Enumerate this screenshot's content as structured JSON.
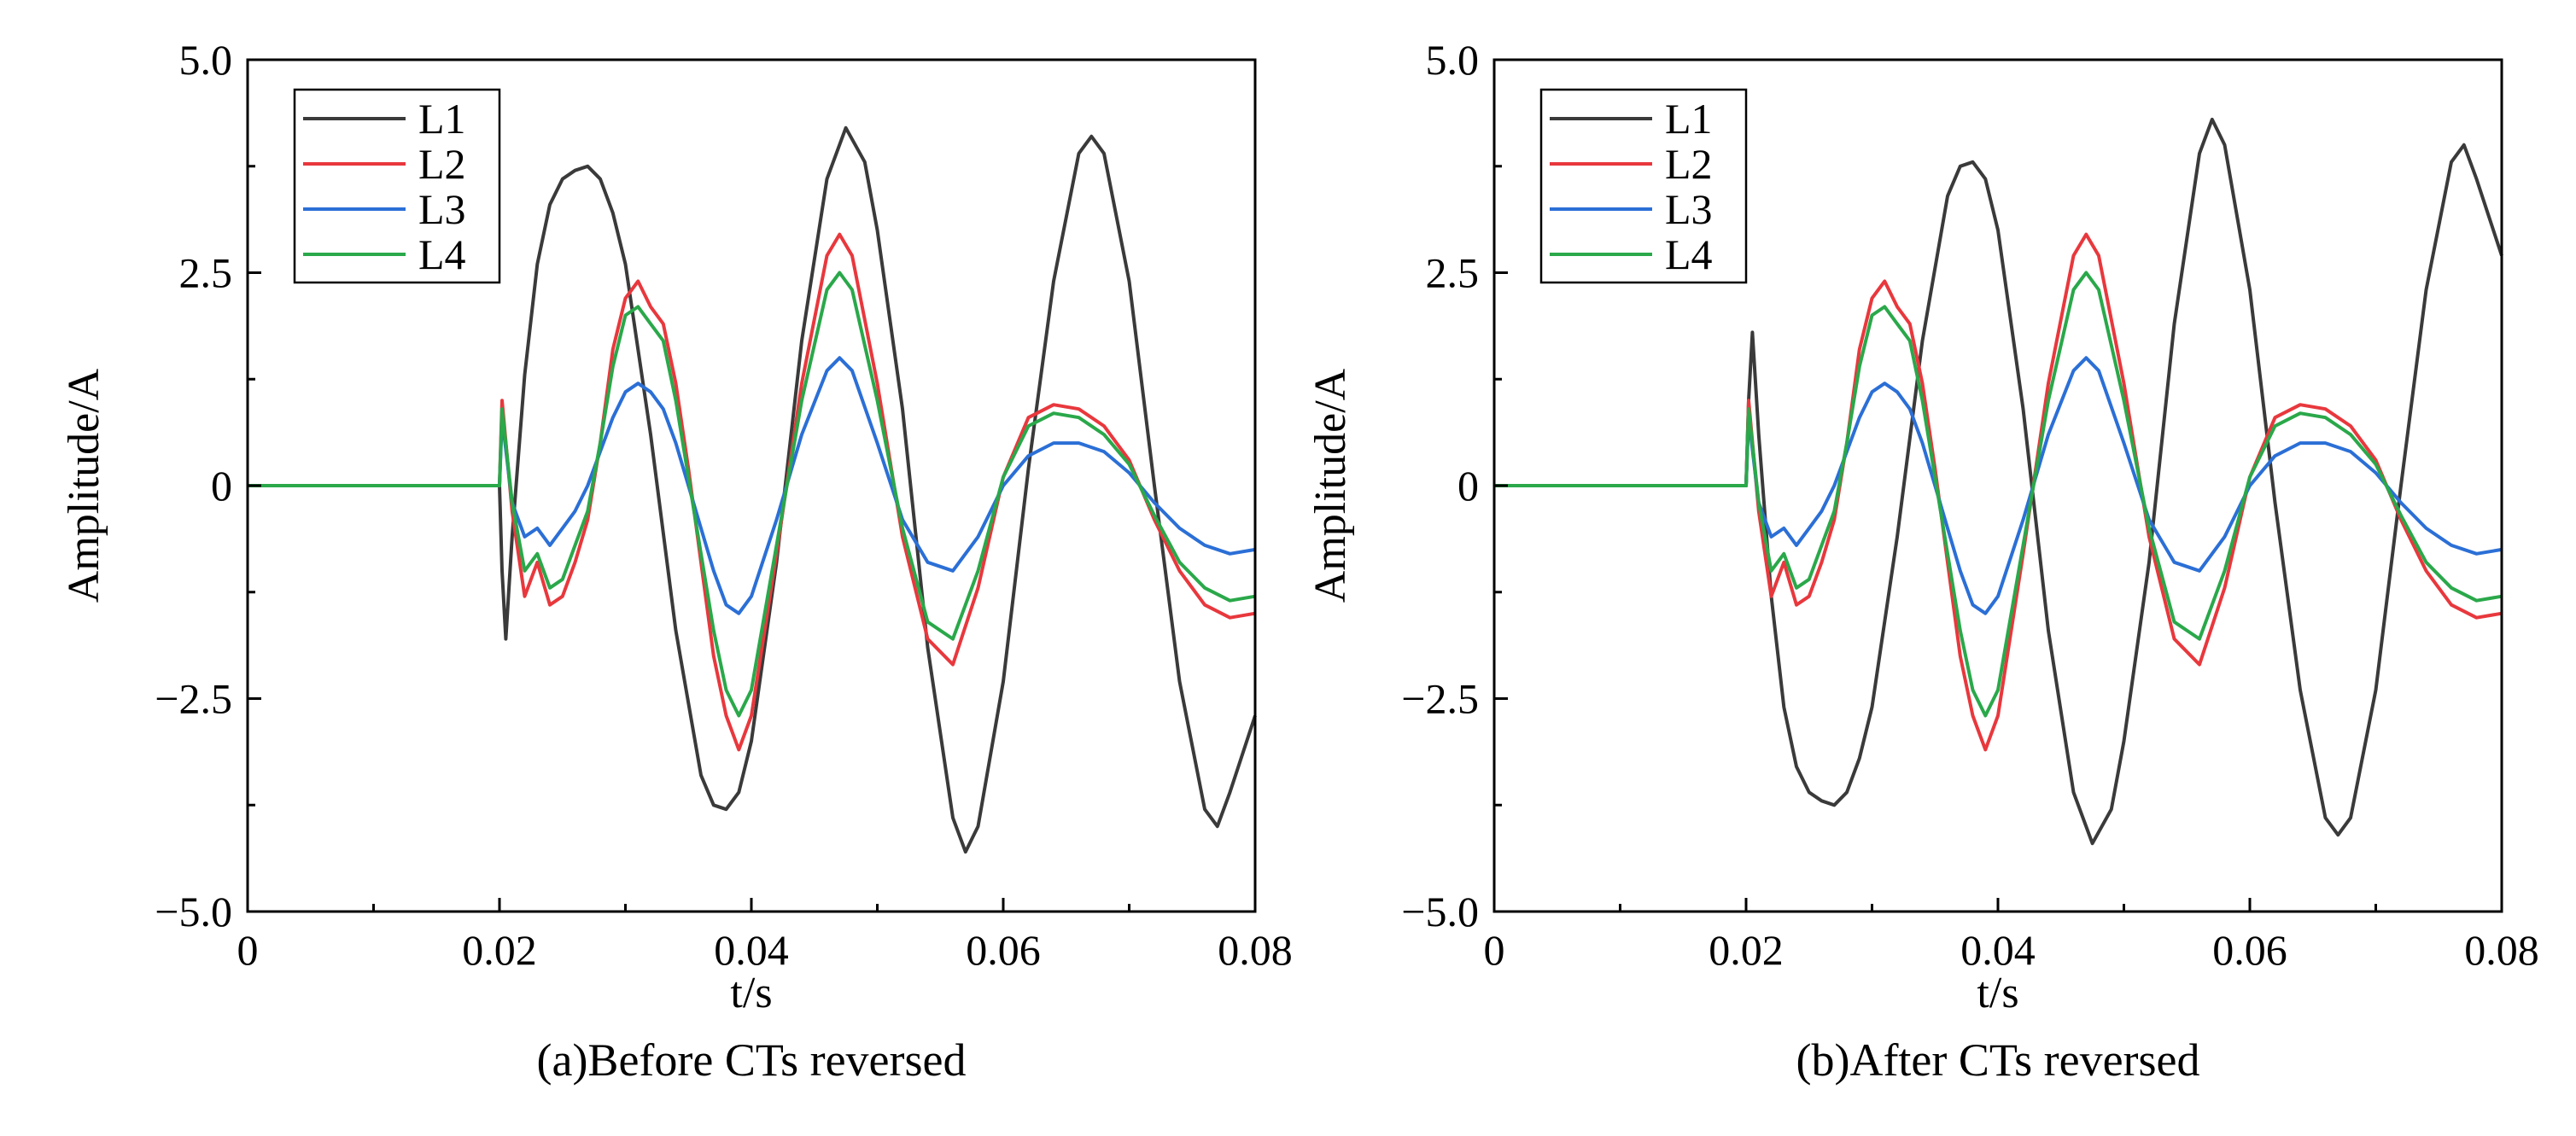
{
  "chart_data": [
    {
      "type": "line",
      "caption": "(a)Before CTs reversed",
      "xlabel": "t/s",
      "ylabel": "Amplitude/A",
      "xlim": [
        0,
        0.08
      ],
      "ylim": [
        -5.0,
        5.0
      ],
      "xticks": [
        0,
        0.02,
        0.04,
        0.06,
        0.08
      ],
      "xtick_labels": [
        "0",
        "0.02",
        "0.04",
        "0.06",
        "0.08"
      ],
      "yticks": [
        5.0,
        2.5,
        0,
        -2.5,
        -5.0
      ],
      "ytick_labels": [
        "5.0",
        "2.5",
        "0",
        "−2.5",
        "−5.0"
      ],
      "grid": false,
      "legend_position": "top-left",
      "series": [
        {
          "name": "L1",
          "color": "#3a3a3a",
          "x": [
            0,
            0.02,
            0.0202,
            0.0205,
            0.021,
            0.022,
            0.023,
            0.024,
            0.025,
            0.026,
            0.027,
            0.028,
            0.029,
            0.03,
            0.032,
            0.034,
            0.036,
            0.037,
            0.038,
            0.039,
            0.04,
            0.042,
            0.044,
            0.046,
            0.0475,
            0.049,
            0.05,
            0.052,
            0.054,
            0.056,
            0.057,
            0.058,
            0.06,
            0.062,
            0.064,
            0.066,
            0.067,
            0.068,
            0.07,
            0.072,
            0.074,
            0.076,
            0.077,
            0.078,
            0.08
          ],
          "values": [
            0,
            0,
            -1.0,
            -1.8,
            -0.6,
            1.3,
            2.6,
            3.3,
            3.6,
            3.7,
            3.75,
            3.6,
            3.2,
            2.6,
            0.6,
            -1.7,
            -3.4,
            -3.75,
            -3.8,
            -3.6,
            -3.0,
            -0.9,
            1.7,
            3.6,
            4.2,
            3.8,
            3.0,
            0.9,
            -1.9,
            -3.9,
            -4.3,
            -4.0,
            -2.3,
            0.2,
            2.4,
            3.9,
            4.1,
            3.9,
            2.4,
            0.0,
            -2.3,
            -3.8,
            -4.0,
            -3.6,
            -2.7
          ]
        },
        {
          "name": "L2",
          "color": "#e8383d",
          "x": [
            0,
            0.02,
            0.0202,
            0.021,
            0.022,
            0.023,
            0.024,
            0.025,
            0.026,
            0.027,
            0.028,
            0.029,
            0.03,
            0.031,
            0.032,
            0.033,
            0.034,
            0.035,
            0.036,
            0.037,
            0.038,
            0.039,
            0.04,
            0.042,
            0.044,
            0.046,
            0.047,
            0.048,
            0.05,
            0.052,
            0.054,
            0.056,
            0.058,
            0.06,
            0.062,
            0.064,
            0.066,
            0.068,
            0.07,
            0.072,
            0.074,
            0.076,
            0.078,
            0.08
          ],
          "values": [
            0,
            0,
            1.0,
            -0.3,
            -1.3,
            -0.9,
            -1.4,
            -1.3,
            -0.9,
            -0.4,
            0.5,
            1.6,
            2.2,
            2.4,
            2.1,
            1.9,
            1.2,
            0.2,
            -0.9,
            -2.0,
            -2.7,
            -3.1,
            -2.7,
            -0.8,
            1.2,
            2.7,
            2.95,
            2.7,
            1.2,
            -0.6,
            -1.8,
            -2.1,
            -1.2,
            0.1,
            0.8,
            0.95,
            0.9,
            0.7,
            0.3,
            -0.4,
            -1.0,
            -1.4,
            -1.55,
            -1.5
          ]
        },
        {
          "name": "L3",
          "color": "#2b6fd6",
          "x": [
            0,
            0.02,
            0.0202,
            0.021,
            0.022,
            0.023,
            0.024,
            0.025,
            0.026,
            0.027,
            0.028,
            0.029,
            0.03,
            0.031,
            0.032,
            0.033,
            0.034,
            0.035,
            0.036,
            0.037,
            0.038,
            0.039,
            0.04,
            0.042,
            0.044,
            0.046,
            0.047,
            0.048,
            0.05,
            0.052,
            0.054,
            0.056,
            0.058,
            0.06,
            0.062,
            0.064,
            0.066,
            0.068,
            0.07,
            0.072,
            0.074,
            0.076,
            0.078,
            0.08
          ],
          "values": [
            0,
            0,
            0.8,
            -0.2,
            -0.6,
            -0.5,
            -0.7,
            -0.5,
            -0.3,
            0.0,
            0.4,
            0.8,
            1.1,
            1.2,
            1.1,
            0.9,
            0.5,
            0.0,
            -0.5,
            -1.0,
            -1.4,
            -1.5,
            -1.3,
            -0.4,
            0.6,
            1.35,
            1.5,
            1.35,
            0.5,
            -0.4,
            -0.9,
            -1.0,
            -0.6,
            0.0,
            0.35,
            0.5,
            0.5,
            0.4,
            0.15,
            -0.2,
            -0.5,
            -0.7,
            -0.8,
            -0.75
          ]
        },
        {
          "name": "L4",
          "color": "#2aa84a",
          "x": [
            0,
            0.02,
            0.0202,
            0.021,
            0.022,
            0.023,
            0.024,
            0.025,
            0.026,
            0.027,
            0.028,
            0.029,
            0.03,
            0.031,
            0.032,
            0.033,
            0.034,
            0.035,
            0.036,
            0.037,
            0.038,
            0.039,
            0.04,
            0.042,
            0.044,
            0.046,
            0.047,
            0.048,
            0.05,
            0.052,
            0.054,
            0.056,
            0.058,
            0.06,
            0.062,
            0.064,
            0.066,
            0.068,
            0.07,
            0.072,
            0.074,
            0.076,
            0.078,
            0.08
          ],
          "values": [
            0,
            0,
            0.9,
            -0.2,
            -1.0,
            -0.8,
            -1.2,
            -1.1,
            -0.7,
            -0.3,
            0.5,
            1.4,
            2.0,
            2.1,
            1.9,
            1.7,
            1.0,
            0.1,
            -0.8,
            -1.7,
            -2.4,
            -2.7,
            -2.4,
            -0.7,
            1.0,
            2.3,
            2.5,
            2.3,
            1.0,
            -0.5,
            -1.6,
            -1.8,
            -1.0,
            0.1,
            0.7,
            0.85,
            0.8,
            0.6,
            0.25,
            -0.35,
            -0.9,
            -1.2,
            -1.35,
            -1.3
          ]
        }
      ]
    },
    {
      "type": "line",
      "caption": "(b)After CTs reversed",
      "xlabel": "t/s",
      "ylabel": "Amplitude/A",
      "xlim": [
        0,
        0.08
      ],
      "ylim": [
        -5.0,
        5.0
      ],
      "xticks": [
        0,
        0.02,
        0.04,
        0.06,
        0.08
      ],
      "xtick_labels": [
        "0",
        "0.02",
        "0.04",
        "0.06",
        "0.08"
      ],
      "yticks": [
        5.0,
        2.5,
        0,
        -2.5,
        -5.0
      ],
      "ytick_labels": [
        "5.0",
        "2.5",
        "0",
        "−2.5",
        "−5.0"
      ],
      "grid": false,
      "legend_position": "top-left",
      "series": [
        {
          "name": "L1",
          "color": "#3a3a3a",
          "x": [
            0,
            0.02,
            0.0202,
            0.0205,
            0.021,
            0.022,
            0.023,
            0.024,
            0.025,
            0.026,
            0.027,
            0.028,
            0.029,
            0.03,
            0.032,
            0.034,
            0.036,
            0.037,
            0.038,
            0.039,
            0.04,
            0.042,
            0.044,
            0.046,
            0.0475,
            0.049,
            0.05,
            0.052,
            0.054,
            0.056,
            0.057,
            0.058,
            0.06,
            0.062,
            0.064,
            0.066,
            0.067,
            0.068,
            0.07,
            0.072,
            0.074,
            0.076,
            0.077,
            0.078,
            0.08
          ],
          "values": [
            0,
            0,
            1.0,
            1.8,
            0.6,
            -1.3,
            -2.6,
            -3.3,
            -3.6,
            -3.7,
            -3.75,
            -3.6,
            -3.2,
            -2.6,
            -0.6,
            1.7,
            3.4,
            3.75,
            3.8,
            3.6,
            3.0,
            0.9,
            -1.7,
            -3.6,
            -4.2,
            -3.8,
            -3.0,
            -0.9,
            1.9,
            3.9,
            4.3,
            4.0,
            2.3,
            -0.2,
            -2.4,
            -3.9,
            -4.1,
            -3.9,
            -2.4,
            0.0,
            2.3,
            3.8,
            4.0,
            3.6,
            2.7
          ]
        },
        {
          "name": "L2",
          "color": "#e8383d",
          "x": [
            0,
            0.02,
            0.0202,
            0.021,
            0.022,
            0.023,
            0.024,
            0.025,
            0.026,
            0.027,
            0.028,
            0.029,
            0.03,
            0.031,
            0.032,
            0.033,
            0.034,
            0.035,
            0.036,
            0.037,
            0.038,
            0.039,
            0.04,
            0.042,
            0.044,
            0.046,
            0.047,
            0.048,
            0.05,
            0.052,
            0.054,
            0.056,
            0.058,
            0.06,
            0.062,
            0.064,
            0.066,
            0.068,
            0.07,
            0.072,
            0.074,
            0.076,
            0.078,
            0.08
          ],
          "values": [
            0,
            0,
            1.0,
            -0.3,
            -1.3,
            -0.9,
            -1.4,
            -1.3,
            -0.9,
            -0.4,
            0.5,
            1.6,
            2.2,
            2.4,
            2.1,
            1.9,
            1.2,
            0.2,
            -0.9,
            -2.0,
            -2.7,
            -3.1,
            -2.7,
            -0.8,
            1.2,
            2.7,
            2.95,
            2.7,
            1.2,
            -0.6,
            -1.8,
            -2.1,
            -1.2,
            0.1,
            0.8,
            0.95,
            0.9,
            0.7,
            0.3,
            -0.4,
            -1.0,
            -1.4,
            -1.55,
            -1.5
          ]
        },
        {
          "name": "L3",
          "color": "#2b6fd6",
          "x": [
            0,
            0.02,
            0.0202,
            0.021,
            0.022,
            0.023,
            0.024,
            0.025,
            0.026,
            0.027,
            0.028,
            0.029,
            0.03,
            0.031,
            0.032,
            0.033,
            0.034,
            0.035,
            0.036,
            0.037,
            0.038,
            0.039,
            0.04,
            0.042,
            0.044,
            0.046,
            0.047,
            0.048,
            0.05,
            0.052,
            0.054,
            0.056,
            0.058,
            0.06,
            0.062,
            0.064,
            0.066,
            0.068,
            0.07,
            0.072,
            0.074,
            0.076,
            0.078,
            0.08
          ],
          "values": [
            0,
            0,
            0.8,
            -0.2,
            -0.6,
            -0.5,
            -0.7,
            -0.5,
            -0.3,
            0.0,
            0.4,
            0.8,
            1.1,
            1.2,
            1.1,
            0.9,
            0.5,
            0.0,
            -0.5,
            -1.0,
            -1.4,
            -1.5,
            -1.3,
            -0.4,
            0.6,
            1.35,
            1.5,
            1.35,
            0.5,
            -0.4,
            -0.9,
            -1.0,
            -0.6,
            0.0,
            0.35,
            0.5,
            0.5,
            0.4,
            0.15,
            -0.2,
            -0.5,
            -0.7,
            -0.8,
            -0.75
          ]
        },
        {
          "name": "L4",
          "color": "#2aa84a",
          "x": [
            0,
            0.02,
            0.0202,
            0.021,
            0.022,
            0.023,
            0.024,
            0.025,
            0.026,
            0.027,
            0.028,
            0.029,
            0.03,
            0.031,
            0.032,
            0.033,
            0.034,
            0.035,
            0.036,
            0.037,
            0.038,
            0.039,
            0.04,
            0.042,
            0.044,
            0.046,
            0.047,
            0.048,
            0.05,
            0.052,
            0.054,
            0.056,
            0.058,
            0.06,
            0.062,
            0.064,
            0.066,
            0.068,
            0.07,
            0.072,
            0.074,
            0.076,
            0.078,
            0.08
          ],
          "values": [
            0,
            0,
            0.9,
            -0.2,
            -1.0,
            -0.8,
            -1.2,
            -1.1,
            -0.7,
            -0.3,
            0.5,
            1.4,
            2.0,
            2.1,
            1.9,
            1.7,
            1.0,
            0.1,
            -0.8,
            -1.7,
            -2.4,
            -2.7,
            -2.4,
            -0.7,
            1.0,
            2.3,
            2.5,
            2.3,
            1.0,
            -0.5,
            -1.6,
            -1.8,
            -1.0,
            0.1,
            0.7,
            0.85,
            0.8,
            0.6,
            0.25,
            -0.35,
            -0.9,
            -1.2,
            -1.35,
            -1.3
          ]
        }
      ]
    }
  ]
}
